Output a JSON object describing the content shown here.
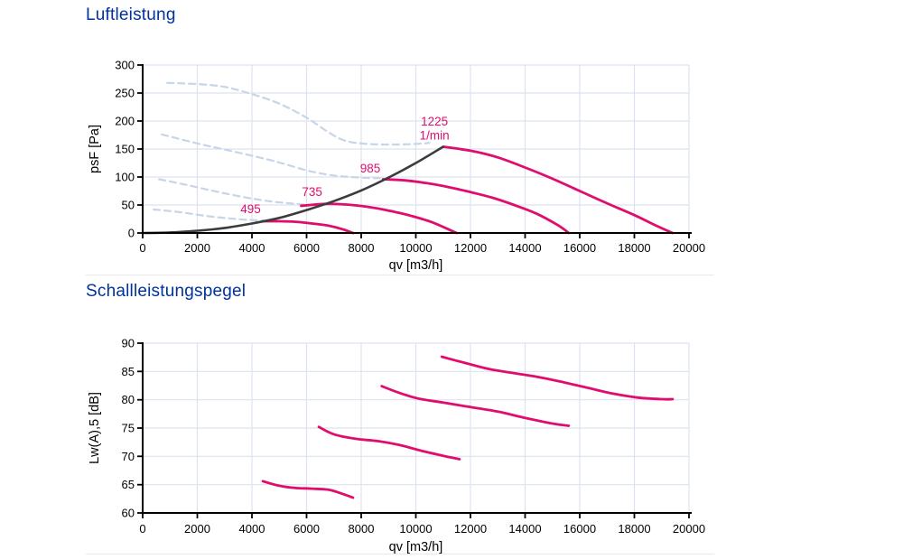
{
  "palette": {
    "title_blue": "#003399",
    "curve_pink": "#E00D6E",
    "system_curve_gray": "#3C3C3C",
    "dashed_light_blue": "#C7D5E8",
    "grid": "#DCE3F0",
    "axis": "#000000",
    "tick_text": "#000000",
    "divider": "#E9E9E9",
    "background": "#FFFFFF"
  },
  "chart_data": [
    {
      "type": "line",
      "title": "Luftleistung",
      "xlabel": "qv [m3/h]",
      "ylabel": "psF [Pa]",
      "xlim": [
        0,
        20000
      ],
      "ylim": [
        0,
        300
      ],
      "xticks": [
        0,
        2000,
        4000,
        6000,
        8000,
        10000,
        12000,
        14000,
        16000,
        18000,
        20000
      ],
      "yticks": [
        0,
        50,
        100,
        150,
        200,
        250,
        300
      ],
      "grid": true,
      "legend_position": "none",
      "series": [
        {
          "name": "guide-dashed-495",
          "color": "#C7D5E8",
          "dashed": true,
          "width": 2.2,
          "points": [
            [
              400,
              42
            ],
            [
              1400,
              37
            ],
            [
              2400,
              30
            ],
            [
              3400,
              25
            ],
            [
              4400,
              22
            ]
          ]
        },
        {
          "name": "guide-dashed-735",
          "color": "#C7D5E8",
          "dashed": true,
          "width": 2.2,
          "points": [
            [
              600,
              96
            ],
            [
              1600,
              86
            ],
            [
              2600,
              75
            ],
            [
              3600,
              65
            ],
            [
              4600,
              57
            ],
            [
              5600,
              52
            ],
            [
              6300,
              50
            ],
            [
              6700,
              51
            ]
          ]
        },
        {
          "name": "guide-dashed-985",
          "color": "#C7D5E8",
          "dashed": true,
          "width": 2.2,
          "points": [
            [
              700,
              176
            ],
            [
              2000,
              160
            ],
            [
              3000,
              149
            ],
            [
              4000,
              138
            ],
            [
              5000,
              126
            ],
            [
              6000,
              112
            ],
            [
              6800,
              104
            ],
            [
              7600,
              100
            ],
            [
              8400,
              98
            ],
            [
              8800,
              98
            ]
          ]
        },
        {
          "name": "guide-dashed-1225",
          "color": "#C7D5E8",
          "dashed": true,
          "width": 2.2,
          "points": [
            [
              900,
              268
            ],
            [
              2000,
              266
            ],
            [
              3000,
              261
            ],
            [
              4000,
              248
            ],
            [
              5000,
              231
            ],
            [
              6000,
              206
            ],
            [
              6800,
              180
            ],
            [
              7400,
              165
            ],
            [
              8200,
              159
            ],
            [
              9200,
              158
            ],
            [
              10000,
              159
            ],
            [
              10500,
              161
            ]
          ]
        },
        {
          "name": "fan-curve-495 1/min",
          "color": "#E00D6E",
          "dashed": false,
          "width": 2.8,
          "points": [
            [
              4400,
              21
            ],
            [
              5000,
              21
            ],
            [
              5600,
              20
            ],
            [
              6200,
              17
            ],
            [
              6800,
              13
            ],
            [
              7300,
              7
            ],
            [
              7700,
              0
            ]
          ]
        },
        {
          "name": "fan-curve-735 1/min",
          "color": "#E00D6E",
          "dashed": false,
          "width": 2.8,
          "points": [
            [
              5800,
              48.5
            ],
            [
              6700,
              52
            ],
            [
              7400,
              51
            ],
            [
              8200,
              47
            ],
            [
              9000,
              40
            ],
            [
              9800,
              31
            ],
            [
              10600,
              19
            ],
            [
              11400,
              2
            ],
            [
              11500,
              0
            ]
          ]
        },
        {
          "name": "fan-curve-985 1/min",
          "color": "#E00D6E",
          "dashed": false,
          "width": 2.8,
          "points": [
            [
              8800,
              96
            ],
            [
              9600,
              94
            ],
            [
              10400,
              89
            ],
            [
              11200,
              82
            ],
            [
              12000,
              73
            ],
            [
              12800,
              63
            ],
            [
              13600,
              50
            ],
            [
              14400,
              35
            ],
            [
              15200,
              14
            ],
            [
              15600,
              0
            ]
          ]
        },
        {
          "name": "fan-curve-1225 1/min",
          "color": "#E00D6E",
          "dashed": false,
          "width": 2.8,
          "points": [
            [
              11000,
              154
            ],
            [
              12000,
              147
            ],
            [
              13000,
              135
            ],
            [
              14000,
              117
            ],
            [
              15000,
              97
            ],
            [
              16000,
              75
            ],
            [
              17000,
              53
            ],
            [
              18000,
              32
            ],
            [
              18800,
              13
            ],
            [
              19400,
              0
            ]
          ]
        },
        {
          "name": "system-resistance-curve",
          "color": "#3C3C3C",
          "dashed": false,
          "width": 2.6,
          "points": [
            [
              0,
              0
            ],
            [
              1000,
              1
            ],
            [
              2000,
              4
            ],
            [
              3000,
              9
            ],
            [
              4000,
              17
            ],
            [
              5000,
              27
            ],
            [
              6000,
              41
            ],
            [
              7000,
              57
            ],
            [
              8000,
              76
            ],
            [
              9000,
              99
            ],
            [
              10000,
              125
            ],
            [
              11000,
              154
            ]
          ]
        }
      ],
      "curve_labels": [
        {
          "text": "495",
          "x": 3950,
          "y": 43
        },
        {
          "text": "735",
          "x": 6200,
          "y": 73
        },
        {
          "text": "985",
          "x": 8330,
          "y": 115
        },
        {
          "text": "1225",
          "x": 10680,
          "y": 199
        },
        {
          "text": "1/min",
          "x": 10680,
          "y": 174
        }
      ]
    },
    {
      "type": "line",
      "title": "Schallleistungspegel",
      "xlabel": "qv [m3/h]",
      "ylabel": "Lw(A),5 [dB]",
      "xlim": [
        0,
        20000
      ],
      "ylim": [
        60,
        90
      ],
      "xticks": [
        0,
        2000,
        4000,
        6000,
        8000,
        10000,
        12000,
        14000,
        16000,
        18000,
        20000
      ],
      "yticks": [
        60,
        65,
        70,
        75,
        80,
        85,
        90
      ],
      "grid": true,
      "legend_position": "none",
      "series": [
        {
          "name": "sound-curve-495 1/min",
          "color": "#E00D6E",
          "dashed": false,
          "width": 2.8,
          "points": [
            [
              4400,
              65.6
            ],
            [
              5000,
              64.8
            ],
            [
              5600,
              64.4
            ],
            [
              6200,
              64.3
            ],
            [
              6800,
              64.1
            ],
            [
              7300,
              63.4
            ],
            [
              7700,
              62.7
            ]
          ]
        },
        {
          "name": "sound-curve-735 1/min",
          "color": "#E00D6E",
          "dashed": false,
          "width": 2.8,
          "points": [
            [
              6450,
              75.2
            ],
            [
              7000,
              73.9
            ],
            [
              7800,
              73.1
            ],
            [
              8600,
              72.7
            ],
            [
              9400,
              72.0
            ],
            [
              10200,
              71.0
            ],
            [
              11000,
              70.1
            ],
            [
              11600,
              69.5
            ]
          ]
        },
        {
          "name": "sound-curve-985 1/min",
          "color": "#E00D6E",
          "dashed": false,
          "width": 2.8,
          "points": [
            [
              8750,
              82.4
            ],
            [
              9400,
              81.2
            ],
            [
              10100,
              80.2
            ],
            [
              11000,
              79.5
            ],
            [
              12000,
              78.7
            ],
            [
              13000,
              77.9
            ],
            [
              14000,
              76.8
            ],
            [
              15000,
              75.8
            ],
            [
              15600,
              75.4
            ]
          ]
        },
        {
          "name": "sound-curve-1225 1/min",
          "color": "#E00D6E",
          "dashed": false,
          "width": 2.8,
          "points": [
            [
              10950,
              87.6
            ],
            [
              11800,
              86.5
            ],
            [
              12700,
              85.4
            ],
            [
              13600,
              84.7
            ],
            [
              14500,
              84.0
            ],
            [
              15400,
              83.1
            ],
            [
              16300,
              82.1
            ],
            [
              17200,
              81.1
            ],
            [
              18100,
              80.4
            ],
            [
              19000,
              80.1
            ],
            [
              19400,
              80.1
            ]
          ]
        }
      ],
      "curve_labels": []
    }
  ]
}
